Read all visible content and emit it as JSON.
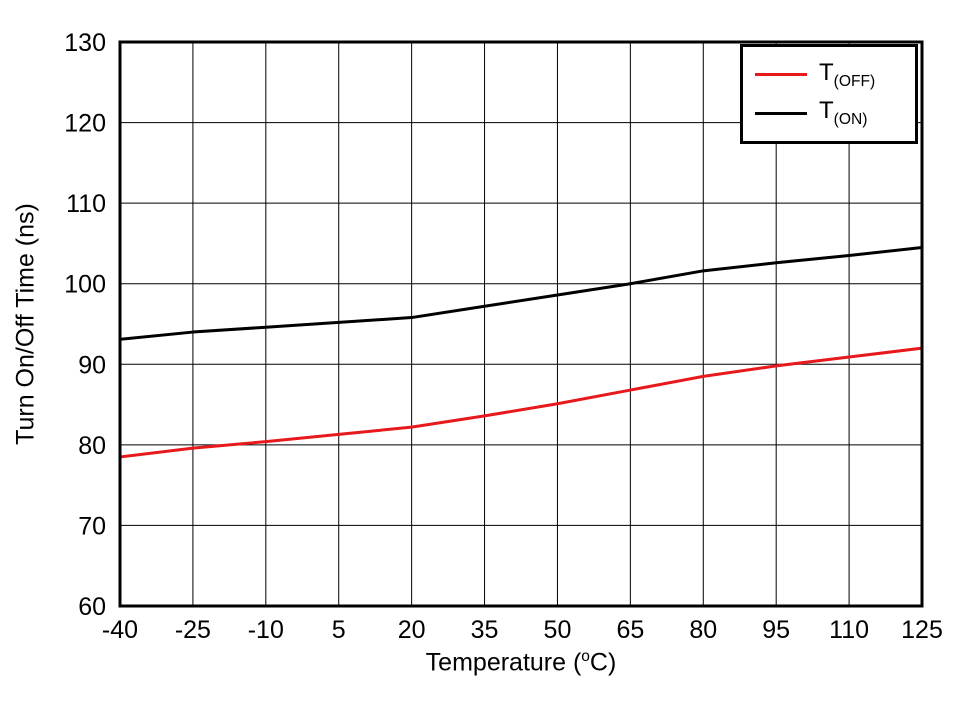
{
  "chart_data": {
    "type": "line",
    "title": "",
    "ylabel": "Turn On/Off Time (ns)",
    "xlabel_parts": {
      "prefix": "Temperature (",
      "sup": "o",
      "suffix": "C)"
    },
    "xlim": [
      -40,
      125
    ],
    "ylim": [
      60,
      130
    ],
    "xticks": [
      -40,
      -25,
      -10,
      5,
      20,
      35,
      50,
      65,
      80,
      95,
      110,
      125
    ],
    "yticks": [
      60,
      70,
      80,
      90,
      100,
      110,
      120,
      130
    ],
    "grid": true,
    "legend_position": "top-right",
    "x": [
      -40,
      -25,
      -10,
      5,
      20,
      35,
      50,
      65,
      80,
      95,
      110,
      125
    ],
    "series": [
      {
        "name_base": "T",
        "name_sub": "(OFF)",
        "color": "#e8191c",
        "values": [
          78.5,
          79.6,
          80.4,
          81.3,
          82.2,
          83.6,
          85.1,
          86.8,
          88.5,
          89.8,
          90.9,
          92.0
        ]
      },
      {
        "name_base": "T",
        "name_sub": "(ON)",
        "color": "#000000",
        "values": [
          93.1,
          94.0,
          94.6,
          95.2,
          95.8,
          97.2,
          98.6,
          100.0,
          101.6,
          102.6,
          103.5,
          104.5
        ]
      }
    ]
  }
}
